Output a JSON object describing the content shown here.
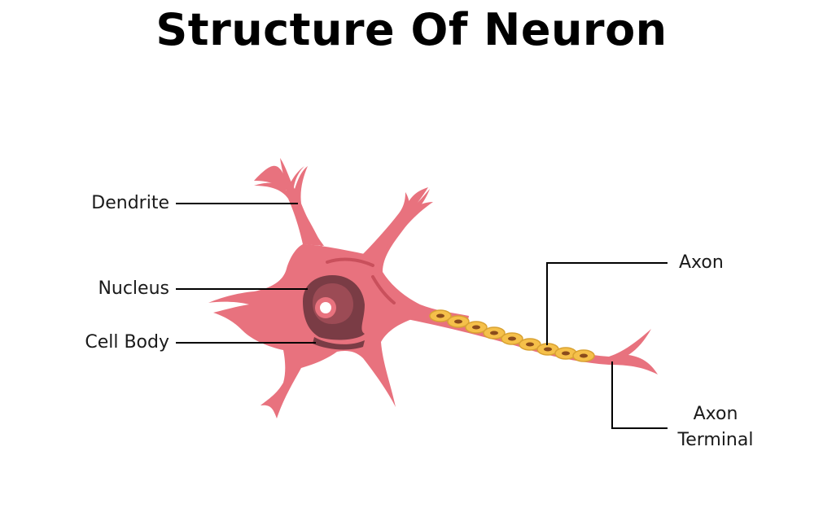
{
  "title": "Structure Of Neuron",
  "labels": {
    "dendrite": "Dendrite",
    "nucleus": "Nucleus",
    "cell_body": "Cell Body",
    "axon": "Axon",
    "axon_terminal_line1": "Axon",
    "axon_terminal_line2": "Terminal"
  },
  "colors": {
    "cell": "#e8727e",
    "cell_dark": "#c9505c",
    "nucleus_outer": "#7a3c45",
    "nucleus_inner": "#ffffff",
    "myelin": "#f5c04a",
    "myelin_dark": "#b7791f",
    "leader_line": "#000000"
  }
}
